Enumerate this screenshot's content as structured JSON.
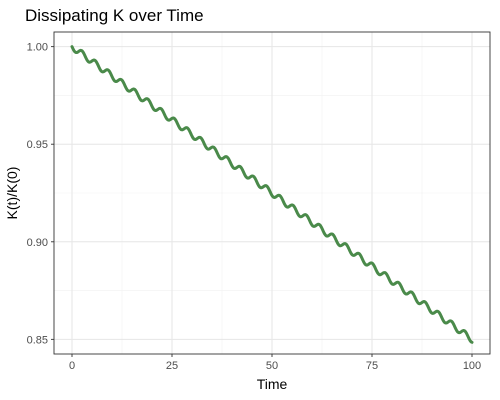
{
  "chart_data": {
    "type": "line",
    "title": "Dissipating K over Time",
    "xlabel": "Time",
    "ylabel": "K(t)/K(0)",
    "xlim": [
      -4.5,
      104.5
    ],
    "ylim": [
      0.8425,
      1.0075
    ],
    "x_ticks": [
      0,
      25,
      50,
      75,
      100
    ],
    "y_ticks": [
      0.85,
      0.9,
      0.95,
      1.0
    ],
    "x_tick_labels": [
      "0",
      "25",
      "50",
      "75",
      "100"
    ],
    "y_tick_labels": [
      "0.85",
      "0.90",
      "0.95",
      "1.00"
    ],
    "grid": true,
    "legend": "none",
    "series": [
      {
        "color": "#4a8a4a",
        "start_x": 0,
        "end_x": 100,
        "start_y": 1.0,
        "end_y": 0.85,
        "oscillation_period": 3.3,
        "oscillation_amplitude": 0.0016
      }
    ]
  }
}
